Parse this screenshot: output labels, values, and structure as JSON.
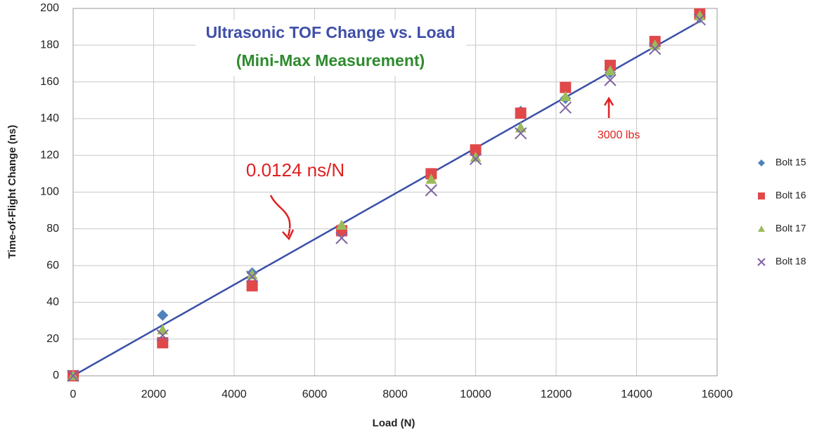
{
  "chart_data": {
    "type": "scatter",
    "title": "Ultrasonic TOF Change vs. Load",
    "subtitle": "(Mini-Max Measurement)",
    "x_label": "Load (N)",
    "y_label": "Time-of-Flight Change (ns)",
    "annotations": [
      "0.0124 ns/N",
      "3000 lbs"
    ],
    "x": [
      0,
      2224,
      4448,
      6672,
      8896,
      10000,
      11120,
      12232,
      13344,
      14456,
      15568
    ],
    "series": [
      {
        "name": "Bolt 15",
        "color": "#4f81bd",
        "marker": "diamond",
        "values": [
          0,
          33,
          56,
          80,
          108,
          121,
          144,
          151,
          165,
          180,
          195
        ]
      },
      {
        "name": "Bolt 16",
        "color": "#e0484a",
        "marker": "square",
        "values": [
          0,
          18,
          49,
          79,
          110,
          123,
          143,
          157,
          169,
          182,
          197
        ]
      },
      {
        "name": "Bolt 17",
        "color": "#9bbb59",
        "marker": "triangle",
        "values": [
          0,
          25,
          55,
          82,
          107,
          119,
          135,
          152,
          166,
          180,
          196
        ]
      },
      {
        "name": "Bolt 18",
        "color": "#8064a2",
        "marker": "x",
        "values": [
          0,
          22,
          54,
          75,
          101,
          118,
          132,
          146,
          161,
          178,
          194
        ]
      }
    ],
    "trendline": {
      "color": "#3a4fa8",
      "x": [
        0,
        15568
      ],
      "values": [
        0,
        193
      ]
    },
    "xlim": [
      0,
      16000
    ],
    "xticks": [
      0,
      2000,
      4000,
      6000,
      8000,
      10000,
      12000,
      14000,
      16000
    ],
    "ylim": [
      0,
      200
    ],
    "yticks": [
      0,
      20,
      40,
      60,
      80,
      100,
      120,
      140,
      160,
      180,
      200
    ],
    "grid": true,
    "legend": "right"
  }
}
